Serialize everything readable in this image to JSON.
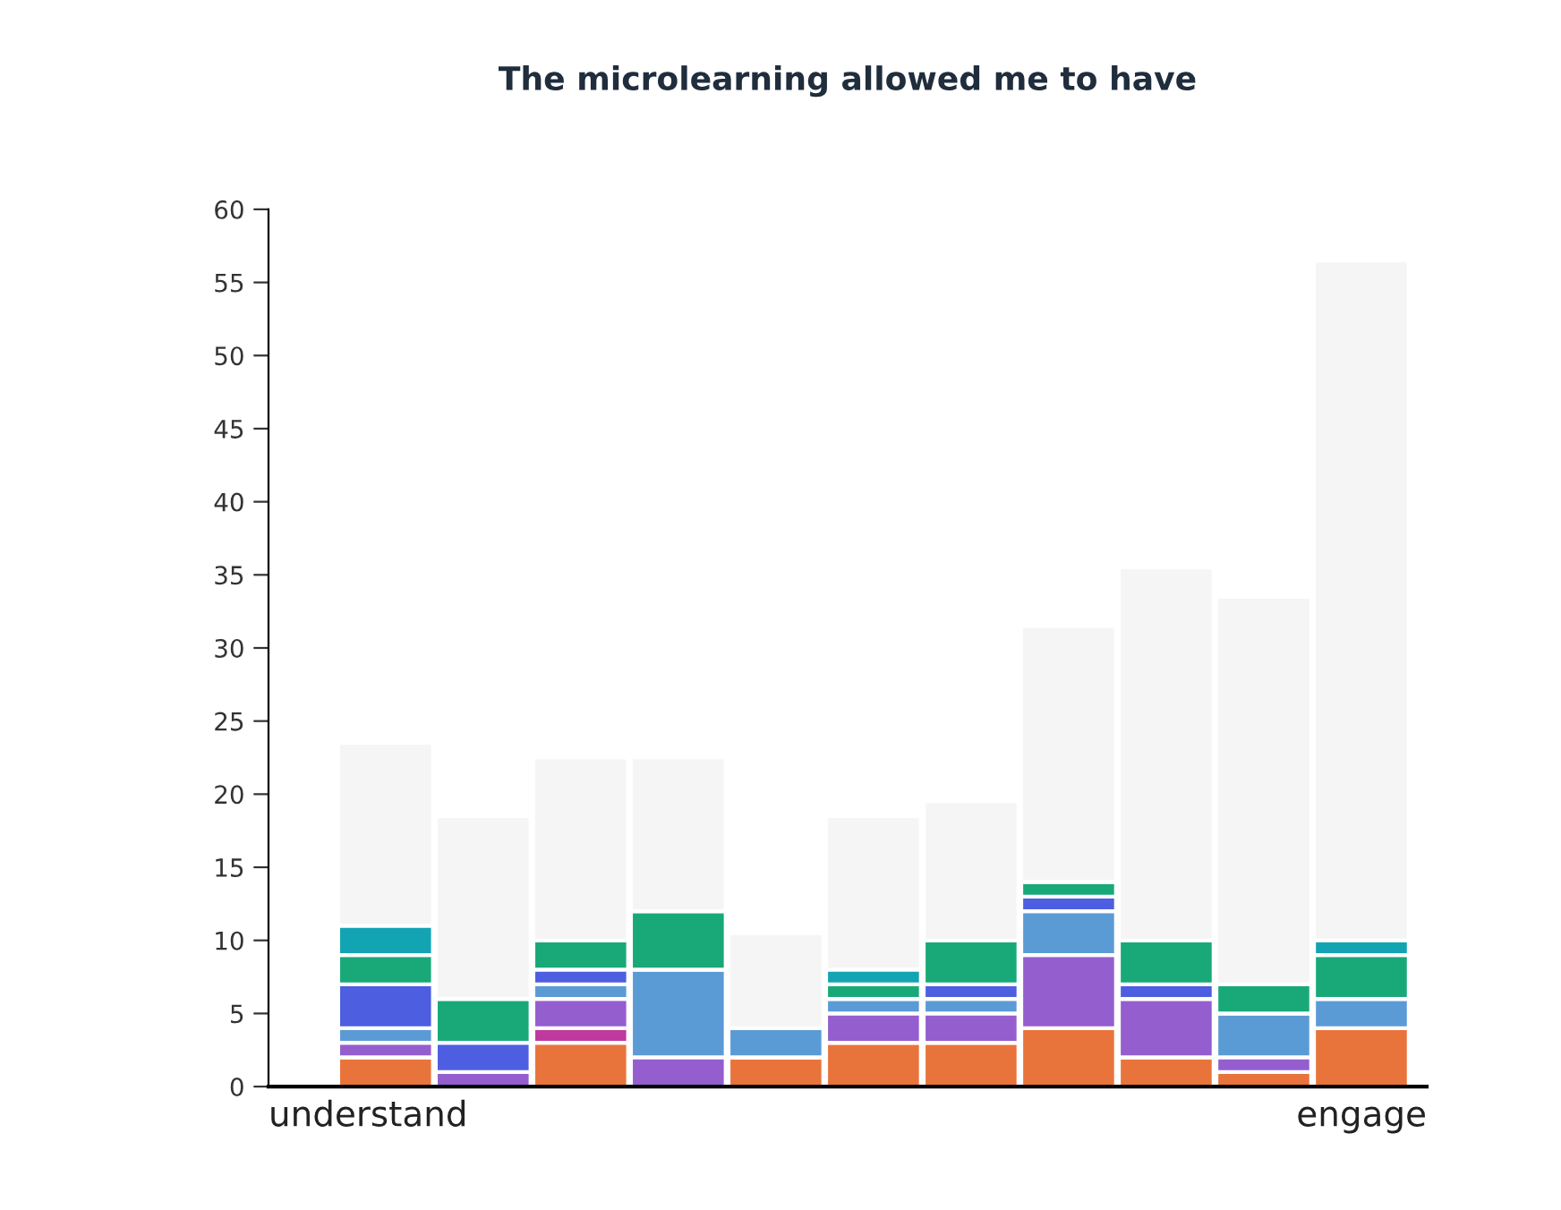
{
  "chart_data": {
    "type": "bar",
    "title": "The microlearning allowed me to have",
    "stacked": true,
    "legend": false,
    "grid": false,
    "categories": [
      null,
      null,
      null,
      null,
      null,
      null,
      null,
      null,
      null,
      null,
      null
    ],
    "series": [
      {
        "color": "#e8743b",
        "values": [
          2,
          0,
          3,
          0,
          2,
          3,
          3,
          4,
          2,
          1,
          4
        ]
      },
      {
        "color": "#c0399f",
        "values": [
          0,
          0,
          1,
          0,
          0,
          0,
          0,
          0,
          0,
          0,
          0
        ]
      },
      {
        "color": "#945ecf",
        "values": [
          1,
          1,
          2,
          2,
          0,
          2,
          2,
          5,
          4,
          1,
          0
        ]
      },
      {
        "color": "#5b9bd5",
        "values": [
          1,
          0,
          1,
          6,
          2,
          1,
          1,
          3,
          0,
          3,
          2
        ]
      },
      {
        "color": "#4e5ee0",
        "values": [
          3,
          2,
          1,
          0,
          0,
          0,
          1,
          1,
          1,
          0,
          0
        ]
      },
      {
        "color": "#19a979",
        "values": [
          2,
          3,
          2,
          4,
          0,
          1,
          3,
          1,
          3,
          2,
          3
        ]
      },
      {
        "color": "#13a4b4",
        "values": [
          2,
          0,
          0,
          0,
          0,
          1,
          0,
          0,
          0,
          0,
          1
        ]
      },
      {
        "color": "#f5f5f5",
        "values": [
          12.5,
          12.5,
          12.5,
          10.5,
          6.5,
          10.5,
          9.5,
          17.5,
          25.5,
          26.5,
          46.5
        ]
      }
    ],
    "ylim": [
      0,
      60
    ],
    "yticks": [
      0,
      5,
      10,
      15,
      20,
      25,
      30,
      35,
      40,
      45,
      50,
      55,
      60
    ],
    "annotations": [
      "understand",
      "engage"
    ]
  }
}
